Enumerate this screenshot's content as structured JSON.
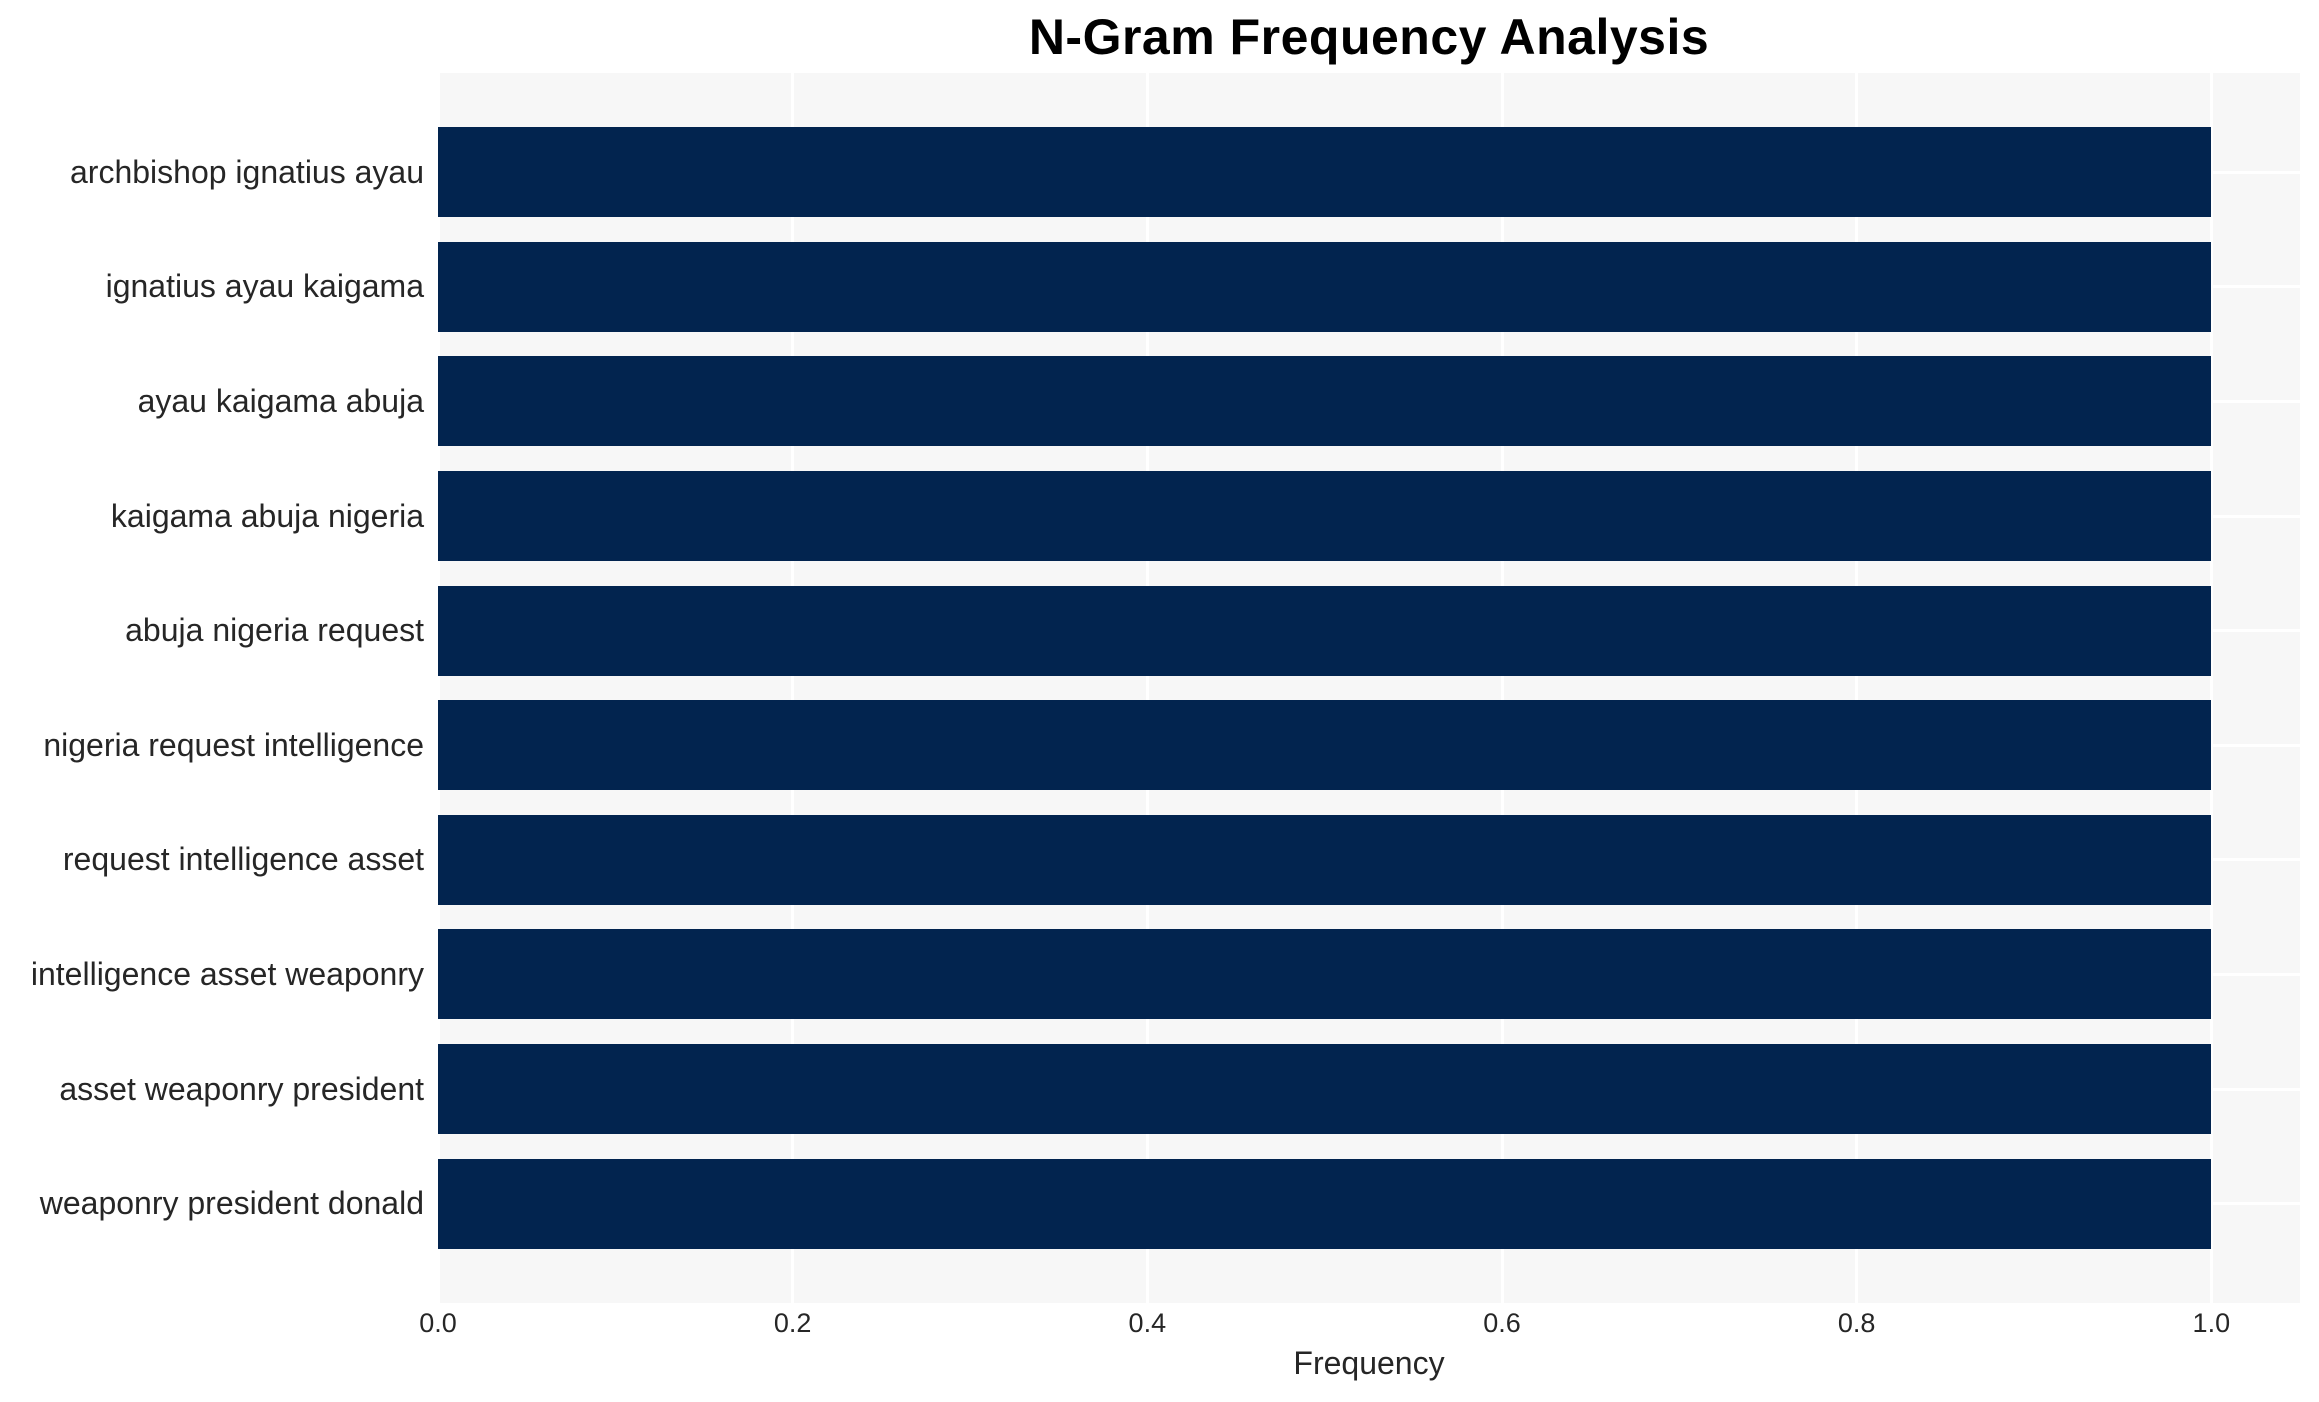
{
  "chart_data": {
    "type": "bar",
    "orientation": "horizontal",
    "title": "N-Gram Frequency Analysis",
    "xlabel": "Frequency",
    "ylabel": "",
    "categories": [
      "archbishop ignatius ayau",
      "ignatius ayau kaigama",
      "ayau kaigama abuja",
      "kaigama abuja nigeria",
      "abuja nigeria request",
      "nigeria request intelligence",
      "request intelligence asset",
      "intelligence asset weaponry",
      "asset weaponry president",
      "weaponry president donald"
    ],
    "values": [
      1.0,
      1.0,
      1.0,
      1.0,
      1.0,
      1.0,
      1.0,
      1.0,
      1.0,
      1.0
    ],
    "xlim": [
      0,
      1.05
    ],
    "xticks": [
      0.0,
      0.2,
      0.4,
      0.6,
      0.8,
      1.0
    ],
    "xtick_labels": [
      "0.0",
      "0.2",
      "0.4",
      "0.6",
      "0.8",
      "1.0"
    ],
    "grid": true,
    "legend": "none",
    "colors": {
      "bar": "#02244f",
      "plot_background": "#f7f7f7",
      "gridline": "#ffffff",
      "title_text": "#000000",
      "label_text": "#262626"
    }
  }
}
